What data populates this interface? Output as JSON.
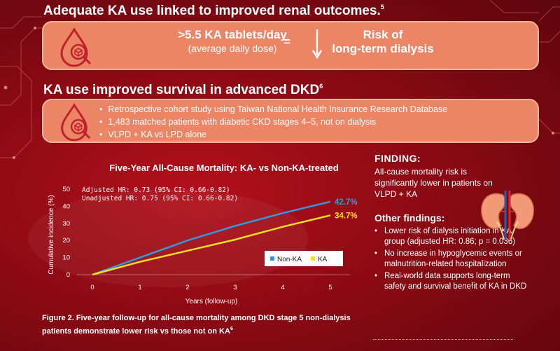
{
  "colors": {
    "accent_box": "#ec8466",
    "non_ka": "#2e9be0",
    "ka": "#f5e11b"
  },
  "section1": {
    "heading": "Adequate KA use linked to improved renal outcomes.",
    "heading_ref": "5",
    "dose_main": ">5.5 KA tablets/day",
    "dose_sub": "(average daily dose)",
    "equals": "=",
    "risk_line1": "Risk of",
    "risk_line2": "long-term dialysis",
    "icon": "kidney-drop-icon",
    "arrow_icon": "down-arrow-icon"
  },
  "section2": {
    "heading": "KA use improved survival in advanced DKD",
    "heading_ref": "6",
    "icon": "kidney-drop-icon",
    "bullets": [
      "Retrospective cohort study using Taiwan National Health Insurance Research Database",
      "1,483 matched patients with diabetic CKD stages 4–5, not on dialysis",
      "VLPD + KA vs LPD alone"
    ]
  },
  "chart_data": {
    "type": "line",
    "title": "Five-Year All-Cause Mortality: KA- vs Non-KA-treated",
    "xlabel": "Years (follow-up)",
    "ylabel": "Cumulative incidence (%)",
    "x": [
      0,
      1,
      2,
      3,
      4,
      5
    ],
    "xlim": [
      0,
      5
    ],
    "ylim": [
      0,
      50
    ],
    "yticks": [
      0,
      10,
      20,
      30,
      40,
      50
    ],
    "series": [
      {
        "name": "Non-KA",
        "color": "#2e9be0",
        "values": [
          0,
          10,
          20,
          28.5,
          36,
          42.7
        ],
        "end_label": "42.7%"
      },
      {
        "name": "KA",
        "color": "#f5e11b",
        "values": [
          0,
          7.5,
          14,
          20.5,
          28,
          34.7
        ],
        "end_label": "34.7%"
      }
    ],
    "annotations": [
      "Adjusted HR: 0.73 (95% CI: 0.66-0.82)",
      "Unadjusted HR: 0.75 (95% CI: 0.66-0.82)"
    ],
    "legend_position": "lower-right",
    "grid": false
  },
  "caption": {
    "text": "Figure 2. Five-year follow-up for all-cause mortality among DKD stage 5 non-dialysis patients demonstrate lower risk vs those not on KA",
    "ref": "6"
  },
  "finding": {
    "title": "FINDING:",
    "text": "All-cause mortality risk is significantly lower in patients on VLPD + KA"
  },
  "other_findings": {
    "title": "Other findings:",
    "items": [
      "Lower risk of dialysis initiation in KA group (adjusted HR: 0.86; p = 0.036)",
      "No increase in hypoglycemic events or malnutrition-related hospitalization",
      "Real-world data supports long-term safety and survival benefit of KA in DKD"
    ],
    "illustration": "kidneys-illustration"
  }
}
